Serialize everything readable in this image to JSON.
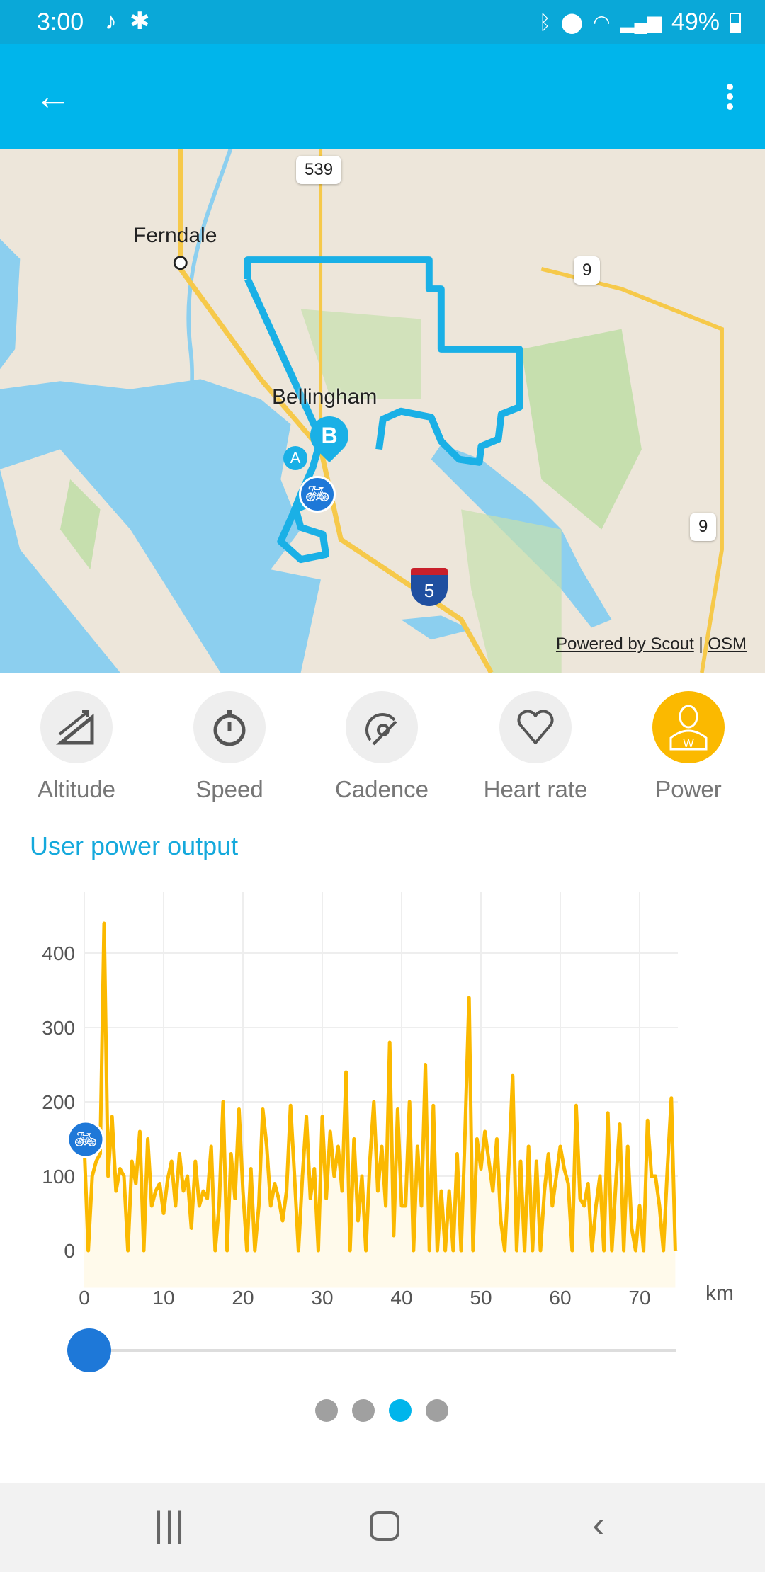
{
  "status_bar": {
    "time": "3:00",
    "left_icons": [
      "music-note-icon",
      "asterisk-icon"
    ],
    "battery": "49%",
    "right_icons": [
      "bluetooth-icon",
      "location-icon",
      "wifi-icon",
      "signal-icon",
      "battery-icon"
    ]
  },
  "app_bar": {
    "back_icon": "arrow-left-icon",
    "menu_icon": "more-vert-icon"
  },
  "map": {
    "labels": {
      "ferndale": "Ferndale",
      "bellingham": "Bellingham"
    },
    "shields": {
      "sr539": "539",
      "sr9_top": "9",
      "sr9_right": "9",
      "i5": "5"
    },
    "markers": {
      "end": "B",
      "start": "A"
    },
    "attribution": {
      "scout": "Powered by Scout",
      "sep": "|",
      "osm": "OSM"
    },
    "colors": {
      "route": "#1ab0e6",
      "water": "#8ccfef",
      "park": "#c6dfae",
      "land": "#ede6da",
      "road": "#f6c94a"
    }
  },
  "categories": [
    {
      "label": "Altitude",
      "icon": "altitude-icon",
      "active": false
    },
    {
      "label": "Speed",
      "icon": "stopwatch-icon",
      "active": false
    },
    {
      "label": "Cadence",
      "icon": "cadence-icon",
      "active": false
    },
    {
      "label": "Heart rate",
      "icon": "heart-icon",
      "active": false
    },
    {
      "label": "Power",
      "icon": "power-user-icon",
      "active": true
    }
  ],
  "section_title": "User power output",
  "chart_data": {
    "type": "line",
    "title": "",
    "xlabel": "km",
    "ylabel": "",
    "xlim": [
      0,
      74.5
    ],
    "ylim": [
      -50,
      500
    ],
    "x_ticks": [
      "0",
      "10",
      "20",
      "30",
      "40",
      "50",
      "60",
      "70"
    ],
    "y_ticks": [
      "0",
      "100",
      "200",
      "300",
      "400"
    ],
    "grid": true,
    "color": "#fbb900",
    "marker_icon": "bicycle-icon",
    "step_km": 0.5,
    "values": [
      140,
      0,
      100,
      120,
      130,
      440,
      100,
      180,
      80,
      110,
      100,
      0,
      120,
      90,
      160,
      0,
      150,
      60,
      80,
      90,
      50,
      95,
      120,
      60,
      130,
      80,
      100,
      30,
      120,
      60,
      80,
      70,
      140,
      0,
      60,
      200,
      0,
      130,
      70,
      190,
      80,
      0,
      110,
      0,
      60,
      190,
      140,
      60,
      90,
      70,
      40,
      80,
      195,
      100,
      0,
      100,
      180,
      70,
      110,
      0,
      180,
      70,
      160,
      100,
      140,
      80,
      240,
      0,
      150,
      40,
      100,
      0,
      120,
      200,
      80,
      140,
      60,
      280,
      20,
      190,
      60,
      60,
      200,
      0,
      140,
      60,
      250,
      0,
      195,
      0,
      80,
      0,
      80,
      0,
      130,
      0,
      160,
      340,
      0,
      150,
      110,
      160,
      120,
      80,
      150,
      40,
      0,
      110,
      235,
      0,
      120,
      0,
      140,
      0,
      120,
      0,
      80,
      130,
      60,
      100,
      140,
      110,
      90,
      0,
      195,
      70,
      60,
      90,
      0,
      60,
      100,
      0,
      185,
      0,
      90,
      170,
      0,
      140,
      30,
      0,
      60,
      0,
      175,
      100,
      100,
      60,
      0,
      110,
      205,
      0
    ]
  },
  "slider": {
    "value_km": 0
  },
  "pager": {
    "count": 4,
    "active": 2
  },
  "nav_bar": {
    "recent": "recent-apps-icon",
    "home": "home-icon",
    "back": "back-icon"
  }
}
